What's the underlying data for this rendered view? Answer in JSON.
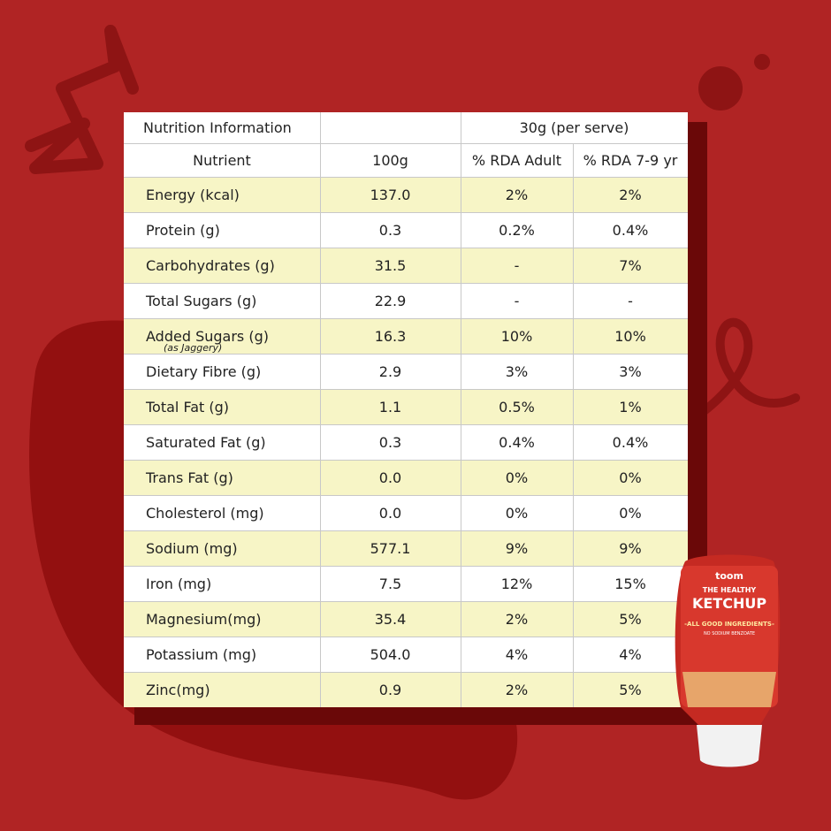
{
  "table": {
    "title": "Nutrition Information",
    "serve": "30g (per serve)",
    "columns": [
      "Nutrient",
      "100g",
      "% RDA Adult",
      "% RDA 7-9 yr"
    ],
    "rows": [
      [
        "Energy (kcal)",
        "137.0",
        "2%",
        "2%"
      ],
      [
        "Protein (g)",
        "0.3",
        "0.2%",
        "0.4%"
      ],
      [
        "Carbohydrates (g)",
        "31.5",
        "-",
        "7%"
      ],
      [
        "Total Sugars (g)",
        "22.9",
        "-",
        "-"
      ],
      [
        "Added Sugars (g)",
        "16.3",
        "10%",
        "10%"
      ],
      [
        "Dietary Fibre (g)",
        "2.9",
        "3%",
        "3%"
      ],
      [
        "Total Fat (g)",
        "1.1",
        "0.5%",
        "1%"
      ],
      [
        "Saturated Fat (g)",
        "0.3",
        "0.4%",
        "0.4%"
      ],
      [
        "Trans Fat (g)",
        "0.0",
        "0%",
        "0%"
      ],
      [
        "Cholesterol (mg)",
        "0.0",
        "0%",
        "0%"
      ],
      [
        "Sodium (mg)",
        "577.1",
        "9%",
        "9%"
      ],
      [
        "Iron (mg)",
        "7.5",
        "12%",
        "15%"
      ],
      [
        "Magnesium(mg)",
        "35.4",
        "2%",
        "5%"
      ],
      [
        "Potassium (mg)",
        "504.0",
        "4%",
        "4%"
      ],
      [
        "Zinc(mg)",
        "0.9",
        "2%",
        "5%"
      ]
    ],
    "added_sugars_note": "(as Jaggery)"
  },
  "product": {
    "brand": "toom",
    "line1": "THE HEALTHY",
    "name": "KETCHUP",
    "tagline": "-ALL GOOD INGREDIENTS-",
    "sub": "NO SODIUM BENZOATE"
  }
}
